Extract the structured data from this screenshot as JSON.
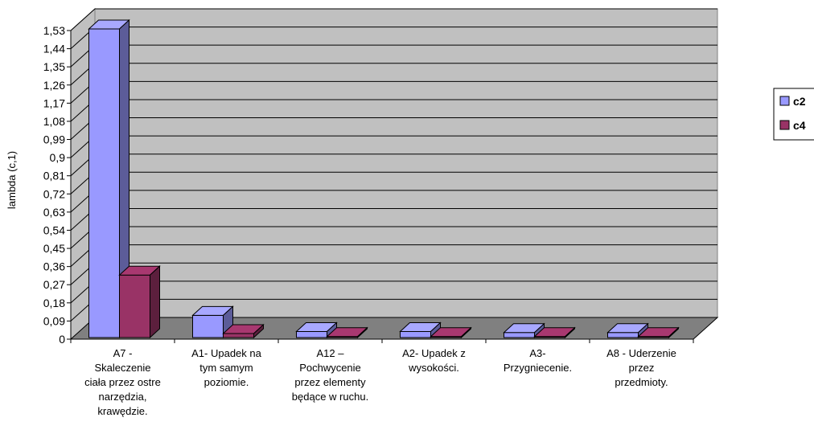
{
  "chart_data": {
    "type": "bar",
    "style": "3d-clustered-column",
    "ylabel": "lambda (c,1)",
    "xlabel": "",
    "ylim": [
      0,
      1.53
    ],
    "yticks": [
      "0",
      "0,09",
      "0,18",
      "0,27",
      "0,36",
      "0,45",
      "0,54",
      "0,63",
      "0,72",
      "0,81",
      "0,9",
      "0,99",
      "1,08",
      "1,17",
      "1,26",
      "1,35",
      "1,44",
      "1,53"
    ],
    "categories": [
      [
        "A7 -",
        "Skaleczenie",
        "ciała przez ostre",
        "narzędzia,",
        "krawędzie."
      ],
      [
        "A1- Upadek na",
        "tym samym",
        "poziomie."
      ],
      [
        "A12 –",
        "Pochwycenie",
        "przez elementy",
        "będące w ruchu."
      ],
      [
        "A2- Upadek z",
        "wysokości."
      ],
      [
        "A3-",
        "Przygniecenie."
      ],
      [
        "A8 - Uderzenie",
        "przez",
        "przedmioty."
      ]
    ],
    "series": [
      {
        "name": "c2",
        "color": "#9999ff",
        "values": [
          1.53,
          0.11,
          0.03,
          0.03,
          0.025,
          0.025
        ]
      },
      {
        "name": "c4",
        "color": "#993366",
        "values": [
          0.31,
          0.02,
          0.005,
          0.005,
          0.005,
          0.005
        ]
      }
    ],
    "grid": true,
    "legend_position": "right",
    "colors": {
      "wall": "#c0c0c0",
      "floor": "#808080",
      "gridline": "#000000"
    }
  }
}
